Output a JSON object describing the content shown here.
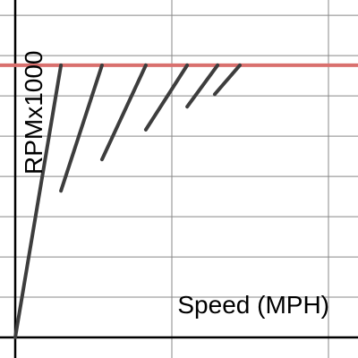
{
  "chart_data": {
    "type": "line",
    "x_label": "Speed (MPH)",
    "y_label": "RPMx1000",
    "xlim": [
      -4.86,
      109.43
    ],
    "ylim": [
      -0.51,
      8.38
    ],
    "xticks": [
      0,
      50,
      100
    ],
    "yticks": [
      0,
      1,
      2,
      3,
      4,
      5,
      6,
      7,
      8
    ],
    "grid": true,
    "color": "#3d3d3d",
    "series": [
      {
        "x": [
          0,
          14.6
        ],
        "values": [
          0,
          6.76
        ]
      },
      {
        "x": [
          14.6,
          27.7
        ],
        "values": [
          3.64,
          6.76
        ]
      },
      {
        "x": [
          27.7,
          41.7
        ],
        "values": [
          4.42,
          6.76
        ]
      },
      {
        "x": [
          41.7,
          54.9
        ],
        "values": [
          5.16,
          6.76
        ]
      },
      {
        "x": [
          54.9,
          64.6
        ],
        "values": [
          5.73,
          6.76
        ]
      },
      {
        "x": [
          63.7,
          71.7
        ],
        "values": [
          6.04,
          6.76
        ]
      }
    ],
    "redline": {
      "value": 6.76,
      "color": "#d9706e"
    }
  }
}
